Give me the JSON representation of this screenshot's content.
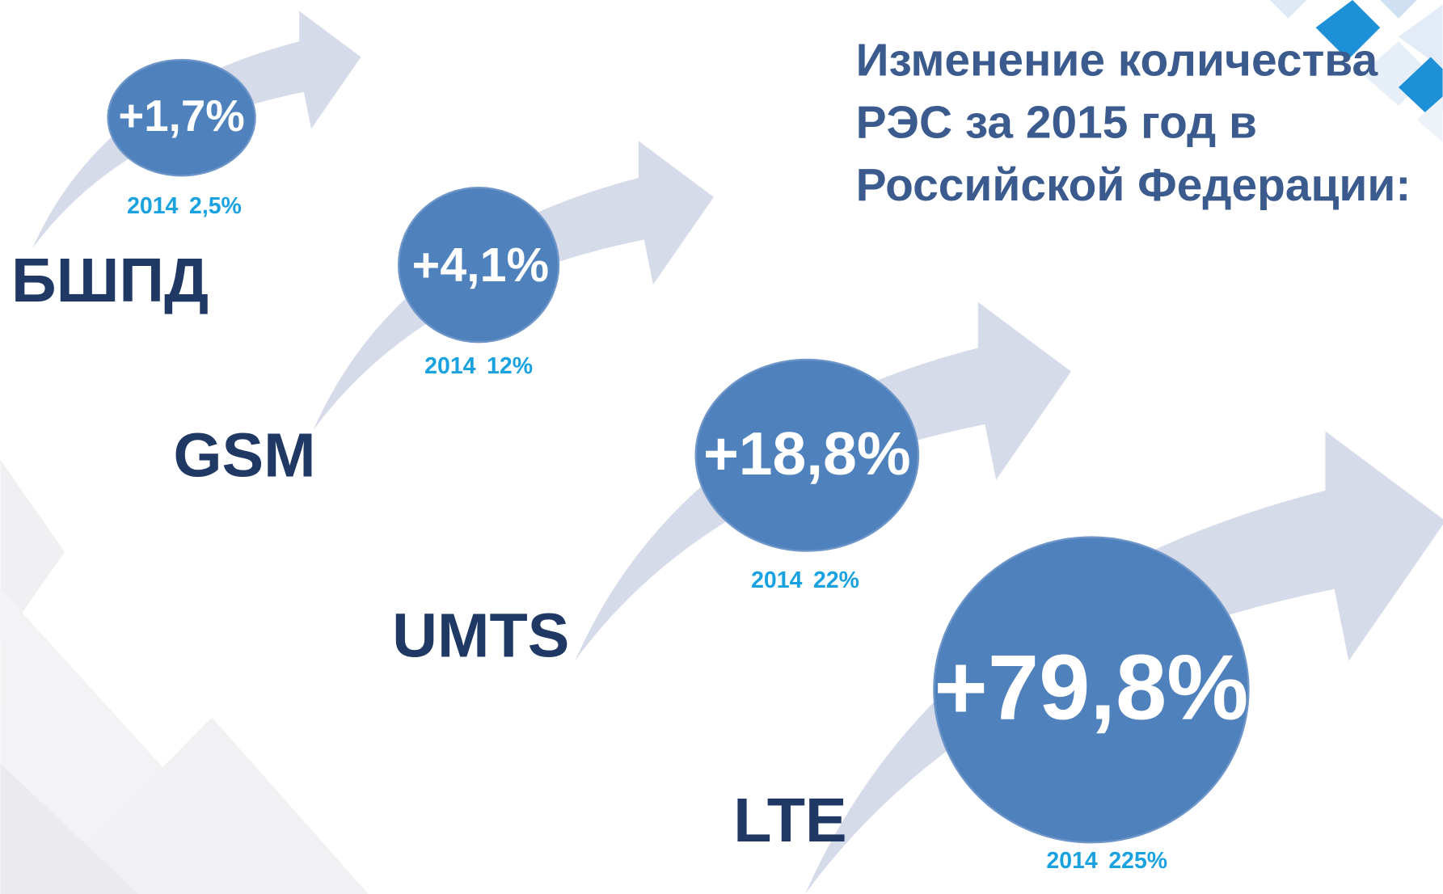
{
  "title": [
    "Изменение количества",
    "РЭС за 2015 год в",
    "Российской Федерации:"
  ],
  "items": [
    {
      "label": "БШПД",
      "change": "+1,7%",
      "year": "2014",
      "prev": "2,5%"
    },
    {
      "label": "GSM",
      "change": "+4,1%",
      "year": "2014",
      "prev": "12%"
    },
    {
      "label": "UMTS",
      "change": "+18,8%",
      "year": "2014",
      "prev": "22%"
    },
    {
      "label": "LTE",
      "change": "+79,8%",
      "year": "2014",
      "prev": "225%"
    }
  ]
}
